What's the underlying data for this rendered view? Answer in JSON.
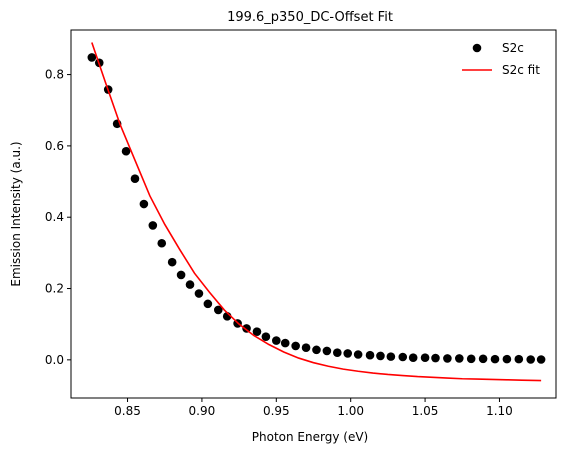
{
  "chart_data": {
    "type": "scatter",
    "title": "199.6_p350_DC-Offset Fit",
    "xlabel": "Photon Energy (eV)",
    "ylabel": "Emission Intensity (a.u.)",
    "xlim": [
      0.812,
      1.138
    ],
    "ylim": [
      -0.107,
      0.925
    ],
    "xticks": [
      0.85,
      0.9,
      0.95,
      1.0,
      1.05,
      1.1
    ],
    "xtick_labels": [
      "0.85",
      "0.90",
      "0.95",
      "1.00",
      "1.05",
      "1.10"
    ],
    "yticks": [
      0.0,
      0.2,
      0.4,
      0.6,
      0.8
    ],
    "ytick_labels": [
      "0.0",
      "0.2",
      "0.4",
      "0.6",
      "0.8"
    ],
    "grid": false,
    "legend_position": "top-right",
    "series": [
      {
        "name": "S2c",
        "kind": "scatter",
        "color": "#000000",
        "x": [
          0.826,
          0.831,
          0.837,
          0.843,
          0.849,
          0.855,
          0.861,
          0.867,
          0.873,
          0.88,
          0.886,
          0.892,
          0.898,
          0.904,
          0.911,
          0.917,
          0.924,
          0.93,
          0.937,
          0.943,
          0.95,
          0.956,
          0.963,
          0.97,
          0.977,
          0.984,
          0.991,
          0.998,
          1.005,
          1.013,
          1.02,
          1.027,
          1.035,
          1.042,
          1.05,
          1.057,
          1.065,
          1.073,
          1.081,
          1.089,
          1.097,
          1.105,
          1.113,
          1.121,
          1.128
        ],
        "y": [
          0.848,
          0.833,
          0.758,
          0.662,
          0.585,
          0.508,
          0.437,
          0.377,
          0.327,
          0.274,
          0.238,
          0.211,
          0.186,
          0.157,
          0.14,
          0.122,
          0.102,
          0.088,
          0.079,
          0.065,
          0.054,
          0.047,
          0.039,
          0.034,
          0.028,
          0.025,
          0.02,
          0.018,
          0.015,
          0.013,
          0.011,
          0.009,
          0.008,
          0.006,
          0.006,
          0.005,
          0.004,
          0.004,
          0.003,
          0.003,
          0.002,
          0.002,
          0.002,
          0.001,
          0.001
        ]
      },
      {
        "name": "S2c fit",
        "kind": "line",
        "color": "#ff0000",
        "x": [
          0.826,
          0.835,
          0.845,
          0.855,
          0.865,
          0.875,
          0.885,
          0.895,
          0.905,
          0.915,
          0.925,
          0.935,
          0.945,
          0.955,
          0.965,
          0.975,
          0.985,
          0.995,
          1.005,
          1.015,
          1.025,
          1.035,
          1.045,
          1.055,
          1.065,
          1.075,
          1.085,
          1.095,
          1.105,
          1.115,
          1.128
        ],
        "y": [
          0.89,
          0.78,
          0.66,
          0.56,
          0.46,
          0.38,
          0.31,
          0.243,
          0.19,
          0.14,
          0.1,
          0.068,
          0.043,
          0.022,
          0.005,
          -0.008,
          -0.018,
          -0.026,
          -0.032,
          -0.037,
          -0.041,
          -0.044,
          -0.047,
          -0.049,
          -0.051,
          -0.053,
          -0.054,
          -0.055,
          -0.056,
          -0.057,
          -0.058
        ]
      }
    ]
  }
}
